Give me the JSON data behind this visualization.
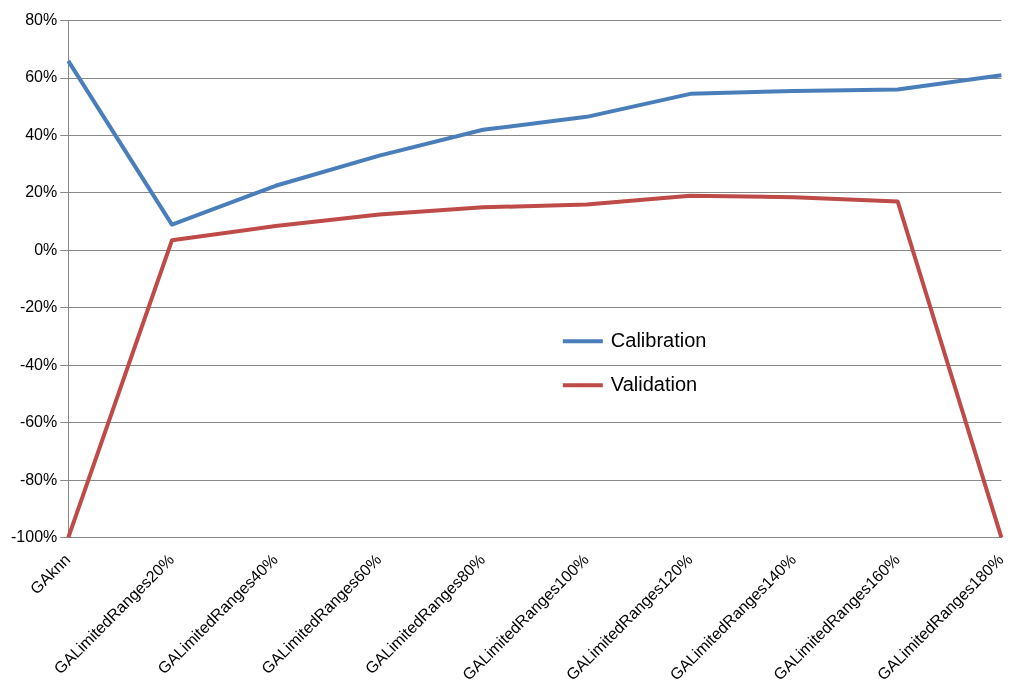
{
  "chart_data": {
    "type": "line",
    "categories": [
      "GAknn",
      "GALimitedRanges20%",
      "GALimitedRanges40%",
      "GALimitedRanges60%",
      "GALimitedRanges80%",
      "GALimitedRanges100%",
      "GALimitedRanges120%",
      "GALimitedRanges140%",
      "GALimitedRanges160%",
      "GALimitedRanges180%"
    ],
    "series": [
      {
        "name": "Calibration",
        "color": "#4a7ebb",
        "values": [
          66,
          9,
          22.5,
          33,
          42,
          46.5,
          54.5,
          55.5,
          56,
          61
        ]
      },
      {
        "name": "Validation",
        "color": "#be4b48",
        "values": [
          -100,
          3.5,
          8.5,
          12.5,
          15,
          16,
          19,
          18.5,
          17,
          -100
        ]
      }
    ],
    "ylim": [
      -100,
      80
    ],
    "yticks": [
      {
        "value": -100,
        "label": "-100%"
      },
      {
        "value": -80,
        "label": "-80%"
      },
      {
        "value": -60,
        "label": "-60%"
      },
      {
        "value": -40,
        "label": "-40%"
      },
      {
        "value": -20,
        "label": "-20%"
      },
      {
        "value": 0,
        "label": "0%"
      },
      {
        "value": 20,
        "label": "20%"
      },
      {
        "value": 40,
        "label": "40%"
      },
      {
        "value": 60,
        "label": "60%"
      },
      {
        "value": 80,
        "label": "80%"
      }
    ],
    "grid": "y",
    "legend": "center",
    "marker": "none",
    "line_style": "solid"
  }
}
